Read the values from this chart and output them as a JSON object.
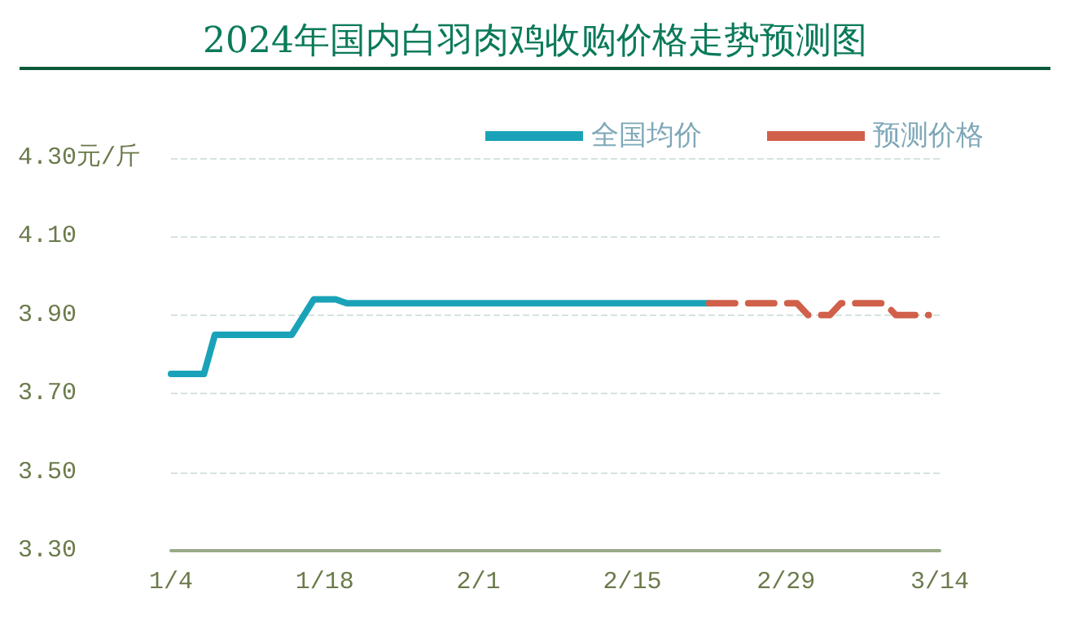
{
  "chart_data": {
    "type": "line",
    "title": "2024年国内白羽肉鸡收购价格走势预测图",
    "xlim": [
      "--01-04",
      "--03-14"
    ],
    "xticks": [
      {
        "value": "--01-04",
        "label": "1/4"
      },
      {
        "value": "--01-18",
        "label": "1/18"
      },
      {
        "value": "--02-01",
        "label": "2/1"
      },
      {
        "value": "--02-15",
        "label": "2/15"
      },
      {
        "value": "--02-29",
        "label": "2/29"
      },
      {
        "value": "--03-14",
        "label": "3/14"
      }
    ],
    "ylim": [
      3.3,
      4.3
    ],
    "yticks": [
      {
        "value": 3.3,
        "label": "3.30"
      },
      {
        "value": 3.5,
        "label": "3.50"
      },
      {
        "value": 3.7,
        "label": "3.70"
      },
      {
        "value": 3.9,
        "label": "3.90"
      },
      {
        "value": 4.1,
        "label": "4.10"
      },
      {
        "value": 4.3,
        "label": "4.30元/斤"
      }
    ],
    "series": [
      {
        "name": "全国均价",
        "color": "#1aa3b8",
        "line_style": "solid",
        "x": [
          "--01-04",
          "--01-07",
          "--01-08",
          "--01-15",
          "--01-17",
          "--01-19",
          "--01-20",
          "--02-22"
        ],
        "values": [
          3.75,
          3.75,
          3.85,
          3.85,
          3.94,
          3.94,
          3.93,
          3.93
        ]
      },
      {
        "name": "预测价格",
        "color": "#d0604a",
        "line_style": "dashed",
        "x": [
          "--02-22",
          "--03-01",
          "--03-02",
          "--03-04",
          "--03-05",
          "--03-09",
          "--03-10",
          "--03-13"
        ],
        "values": [
          3.93,
          3.93,
          3.9,
          3.9,
          3.93,
          3.93,
          3.9,
          3.9
        ]
      }
    ],
    "grid": "y",
    "legend": "top right",
    "marker": "none"
  }
}
